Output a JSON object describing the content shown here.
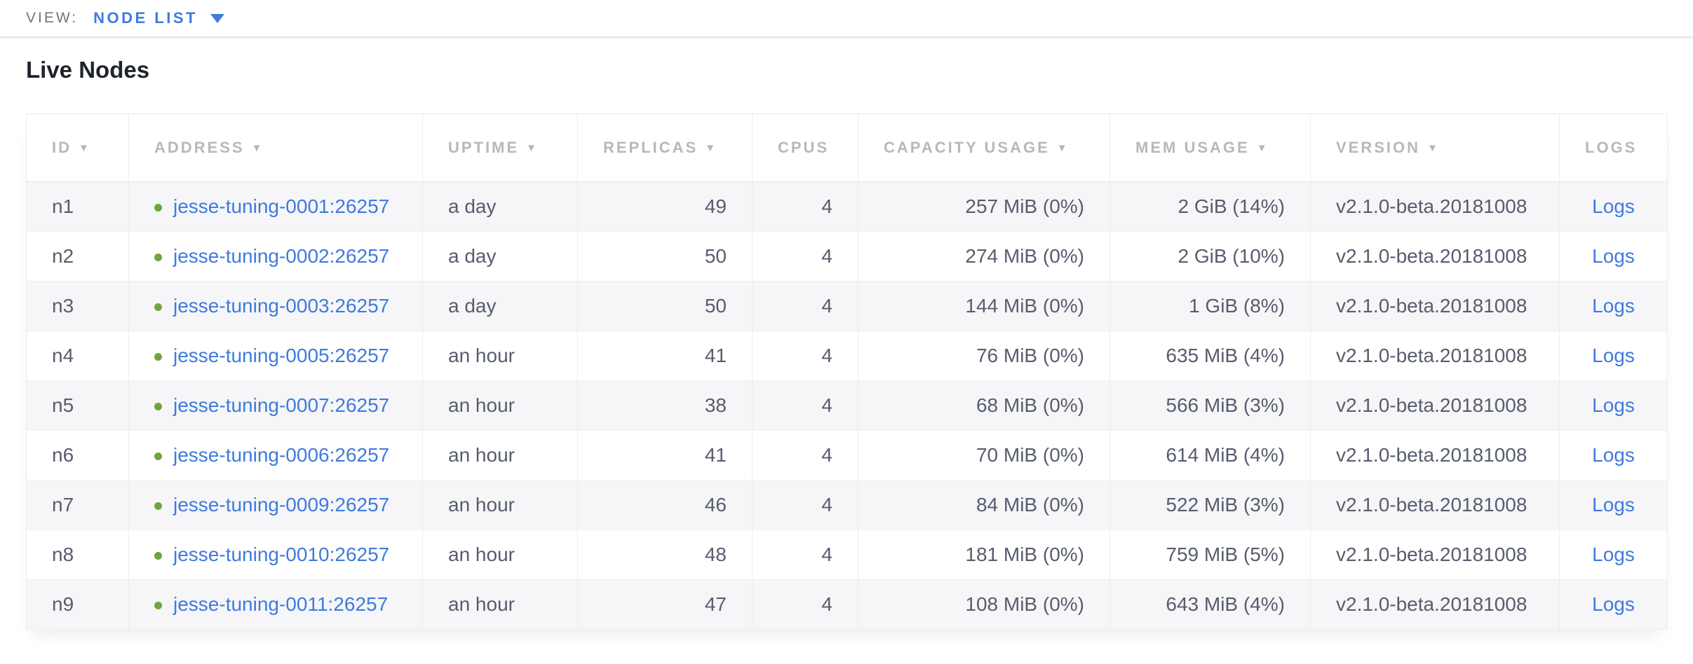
{
  "view_bar": {
    "label": "VIEW:",
    "selected": "NODE LIST"
  },
  "page": {
    "title": "Live Nodes"
  },
  "table": {
    "sort_indicator": "▼",
    "columns": [
      {
        "key": "id",
        "label": "ID",
        "sortable": true,
        "align": "left"
      },
      {
        "key": "address",
        "label": "ADDRESS",
        "sortable": true,
        "align": "left"
      },
      {
        "key": "uptime",
        "label": "UPTIME",
        "sortable": true,
        "align": "left"
      },
      {
        "key": "replicas",
        "label": "REPLICAS",
        "sortable": true,
        "align": "right"
      },
      {
        "key": "cpus",
        "label": "CPUS",
        "sortable": false,
        "align": "right"
      },
      {
        "key": "capacity",
        "label": "CAPACITY USAGE",
        "sortable": true,
        "align": "right"
      },
      {
        "key": "mem",
        "label": "MEM USAGE",
        "sortable": true,
        "align": "right"
      },
      {
        "key": "version",
        "label": "VERSION",
        "sortable": true,
        "align": "left"
      },
      {
        "key": "logs",
        "label": "LOGS",
        "sortable": false,
        "align": "center"
      }
    ],
    "rows": [
      {
        "id": "n1",
        "status": "live",
        "address": "jesse-tuning-0001:26257",
        "uptime": "a day",
        "replicas": "49",
        "cpus": "4",
        "capacity": "257 MiB (0%)",
        "mem": "2 GiB (14%)",
        "version": "v2.1.0-beta.20181008",
        "logs": "Logs"
      },
      {
        "id": "n2",
        "status": "live",
        "address": "jesse-tuning-0002:26257",
        "uptime": "a day",
        "replicas": "50",
        "cpus": "4",
        "capacity": "274 MiB (0%)",
        "mem": "2 GiB (10%)",
        "version": "v2.1.0-beta.20181008",
        "logs": "Logs"
      },
      {
        "id": "n3",
        "status": "live",
        "address": "jesse-tuning-0003:26257",
        "uptime": "a day",
        "replicas": "50",
        "cpus": "4",
        "capacity": "144 MiB (0%)",
        "mem": "1 GiB (8%)",
        "version": "v2.1.0-beta.20181008",
        "logs": "Logs"
      },
      {
        "id": "n4",
        "status": "live",
        "address": "jesse-tuning-0005:26257",
        "uptime": "an hour",
        "replicas": "41",
        "cpus": "4",
        "capacity": "76 MiB (0%)",
        "mem": "635 MiB (4%)",
        "version": "v2.1.0-beta.20181008",
        "logs": "Logs"
      },
      {
        "id": "n5",
        "status": "live",
        "address": "jesse-tuning-0007:26257",
        "uptime": "an hour",
        "replicas": "38",
        "cpus": "4",
        "capacity": "68 MiB (0%)",
        "mem": "566 MiB (3%)",
        "version": "v2.1.0-beta.20181008",
        "logs": "Logs"
      },
      {
        "id": "n6",
        "status": "live",
        "address": "jesse-tuning-0006:26257",
        "uptime": "an hour",
        "replicas": "41",
        "cpus": "4",
        "capacity": "70 MiB (0%)",
        "mem": "614 MiB (4%)",
        "version": "v2.1.0-beta.20181008",
        "logs": "Logs"
      },
      {
        "id": "n7",
        "status": "live",
        "address": "jesse-tuning-0009:26257",
        "uptime": "an hour",
        "replicas": "46",
        "cpus": "4",
        "capacity": "84 MiB (0%)",
        "mem": "522 MiB (3%)",
        "version": "v2.1.0-beta.20181008",
        "logs": "Logs"
      },
      {
        "id": "n8",
        "status": "live",
        "address": "jesse-tuning-0010:26257",
        "uptime": "an hour",
        "replicas": "48",
        "cpus": "4",
        "capacity": "181 MiB (0%)",
        "mem": "759 MiB (5%)",
        "version": "v2.1.0-beta.20181008",
        "logs": "Logs"
      },
      {
        "id": "n9",
        "status": "live",
        "address": "jesse-tuning-0011:26257",
        "uptime": "an hour",
        "replicas": "47",
        "cpus": "4",
        "capacity": "108 MiB (0%)",
        "mem": "643 MiB (4%)",
        "version": "v2.1.0-beta.20181008",
        "logs": "Logs"
      }
    ]
  },
  "colors": {
    "accent_blue": "#3f7ade",
    "live_status_green": "#6fa53a",
    "header_text_gray": "#b6b8bd",
    "cell_text": "#575d6e",
    "row_alt_background": "#f6f6f8",
    "table_border": "#ececee"
  }
}
